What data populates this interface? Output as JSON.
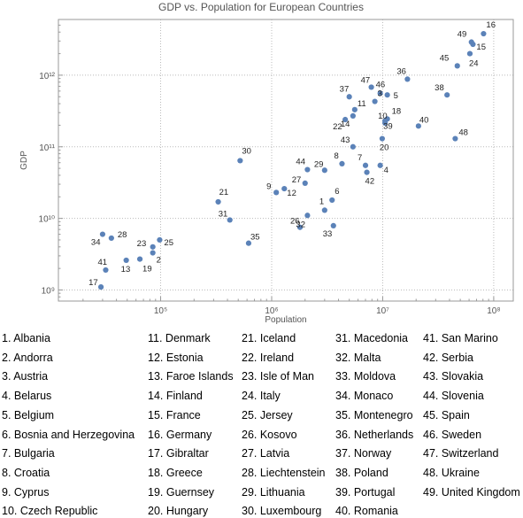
{
  "chart_data": {
    "type": "scatter",
    "title": "GDP vs. Population for European Countries",
    "xlabel": "Population",
    "ylabel": "GDP",
    "x_scale": "log",
    "y_scale": "log",
    "xlim": [
      12000,
      150000000
    ],
    "ylim": [
      700000000,
      6000000000000
    ],
    "x_ticks": [
      {
        "value": 100000,
        "label": "10⁵"
      },
      {
        "value": 1000000,
        "label": "10⁶"
      },
      {
        "value": 10000000,
        "label": "10⁷"
      },
      {
        "value": 100000000,
        "label": "10⁸"
      }
    ],
    "y_ticks": [
      {
        "value": 1000000000,
        "label": "10⁹"
      },
      {
        "value": 10000000000,
        "label": "10¹⁰"
      },
      {
        "value": 100000000000,
        "label": "10¹¹"
      },
      {
        "value": 1000000000000,
        "label": "10¹²"
      }
    ],
    "grid": true,
    "marker_color": "#5b82b8",
    "points": [
      {
        "id": 1,
        "x": 3000000,
        "y": 13000000000
      },
      {
        "id": 2,
        "x": 85000,
        "y": 3300000000
      },
      {
        "id": 3,
        "x": 8500000,
        "y": 430000000000
      },
      {
        "id": 4,
        "x": 9500000,
        "y": 55000000000
      },
      {
        "id": 5,
        "x": 11000000,
        "y": 530000000000
      },
      {
        "id": 6,
        "x": 3500000,
        "y": 18000000000
      },
      {
        "id": 7,
        "x": 7000000,
        "y": 55000000000
      },
      {
        "id": 8,
        "x": 4300000,
        "y": 58000000000
      },
      {
        "id": 9,
        "x": 1100000,
        "y": 23000000000
      },
      {
        "id": 10,
        "x": 10500000,
        "y": 215000000000
      },
      {
        "id": 11,
        "x": 5600000,
        "y": 330000000000
      },
      {
        "id": 12,
        "x": 1300000,
        "y": 26000000000
      },
      {
        "id": 13,
        "x": 49000,
        "y": 2600000000
      },
      {
        "id": 14,
        "x": 5400000,
        "y": 270000000000
      },
      {
        "id": 15,
        "x": 65000000,
        "y": 2700000000000
      },
      {
        "id": 16,
        "x": 81000000,
        "y": 3800000000000
      },
      {
        "id": 17,
        "x": 29000,
        "y": 1100000000
      },
      {
        "id": 18,
        "x": 11000000,
        "y": 245000000000
      },
      {
        "id": 19,
        "x": 65000,
        "y": 2700000000
      },
      {
        "id": 20,
        "x": 9900000,
        "y": 130000000000
      },
      {
        "id": 21,
        "x": 330000,
        "y": 17000000000
      },
      {
        "id": 22,
        "x": 4600000,
        "y": 240000000000
      },
      {
        "id": 23,
        "x": 85000,
        "y": 4000000000
      },
      {
        "id": 24,
        "x": 61000000,
        "y": 2000000000000
      },
      {
        "id": 25,
        "x": 98000,
        "y": 5000000000
      },
      {
        "id": 26,
        "x": 1800000,
        "y": 7500000000
      },
      {
        "id": 27,
        "x": 2000000,
        "y": 31000000000
      },
      {
        "id": 28,
        "x": 36000,
        "y": 5300000000
      },
      {
        "id": 29,
        "x": 3000000,
        "y": 47000000000
      },
      {
        "id": 30,
        "x": 520000,
        "y": 64000000000
      },
      {
        "id": 31,
        "x": 420000,
        "y": 9500000000
      },
      {
        "id": 32,
        "x": 2100000,
        "y": 11000000000
      },
      {
        "id": 33,
        "x": 3600000,
        "y": 7900000000
      },
      {
        "id": 34,
        "x": 30000,
        "y": 6000000000
      },
      {
        "id": 35,
        "x": 620000,
        "y": 4500000000
      },
      {
        "id": 36,
        "x": 16700000,
        "y": 880000000000
      },
      {
        "id": 37,
        "x": 5000000,
        "y": 500000000000
      },
      {
        "id": 38,
        "x": 38000000,
        "y": 530000000000
      },
      {
        "id": 39,
        "x": 10500000,
        "y": 230000000000
      },
      {
        "id": 40,
        "x": 21000000,
        "y": 195000000000
      },
      {
        "id": 41,
        "x": 32000,
        "y": 1900000000
      },
      {
        "id": 42,
        "x": 7200000,
        "y": 44000000000
      },
      {
        "id": 43,
        "x": 5400000,
        "y": 100000000000
      },
      {
        "id": 44,
        "x": 2100000,
        "y": 48000000000
      },
      {
        "id": 45,
        "x": 47000000,
        "y": 1350000000000
      },
      {
        "id": 46,
        "x": 9500000,
        "y": 560000000000
      },
      {
        "id": 47,
        "x": 7900000,
        "y": 680000000000
      },
      {
        "id": 48,
        "x": 45000000,
        "y": 130000000000
      },
      {
        "id": 49,
        "x": 63000000,
        "y": 2900000000000
      }
    ]
  },
  "legend": [
    [
      "1. Albania",
      "2. Andorra",
      "3. Austria",
      "4. Belarus",
      "5. Belgium",
      "6. Bosnia and Herzegovina",
      "7. Bulgaria",
      "8. Croatia",
      "9. Cyprus",
      "10. Czech Republic"
    ],
    [
      "11. Denmark",
      "12. Estonia",
      "13. Faroe Islands",
      "14. Finland",
      "15. France",
      "16. Germany",
      "17. Gibraltar",
      "18. Greece",
      "19. Guernsey",
      "20. Hungary"
    ],
    [
      "21. Iceland",
      "22. Ireland",
      "23. Isle of Man",
      "24. Italy",
      "25. Jersey",
      "26. Kosovo",
      "27. Latvia",
      "28. Liechtenstein",
      "29. Lithuania",
      "30. Luxembourg"
    ],
    [
      "31. Macedonia",
      "32. Malta",
      "33. Moldova",
      "34. Monaco",
      "35. Montenegro",
      "36. Netherlands",
      "37. Norway",
      "38. Poland",
      "39. Portugal",
      "40. Romania"
    ],
    [
      "41. San Marino",
      "42. Serbia",
      "43. Slovakia",
      "44. Slovenia",
      "45. Spain",
      "46. Sweden",
      "47. Switzerland",
      "48. Ukraine",
      "49. United Kingdom"
    ]
  ]
}
